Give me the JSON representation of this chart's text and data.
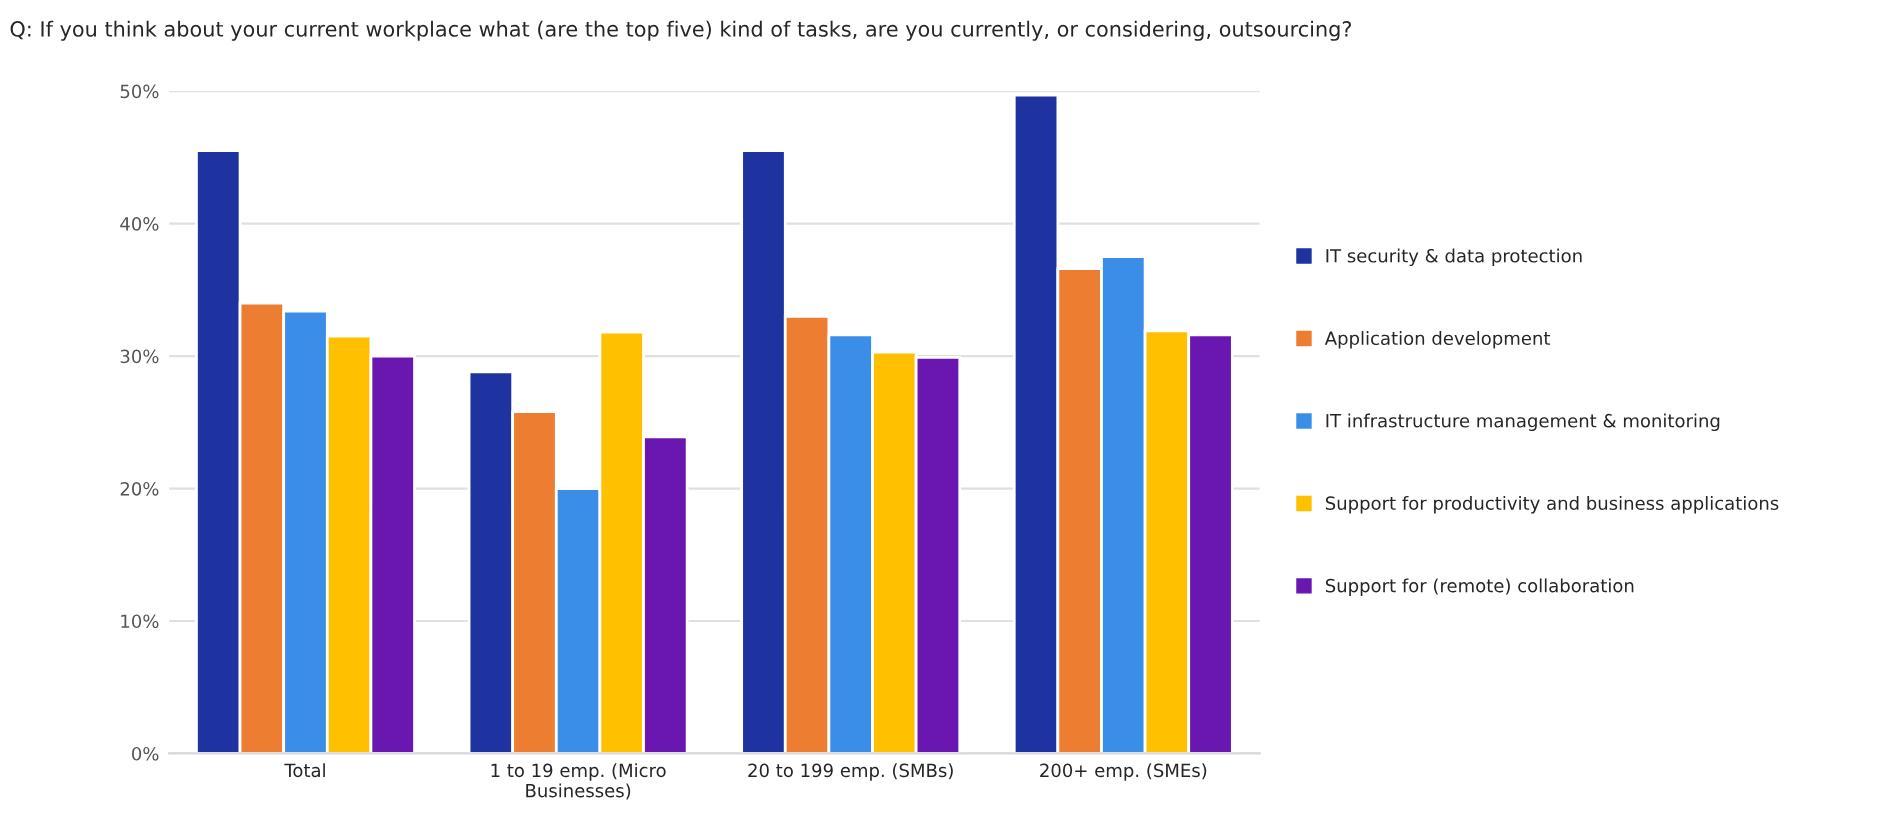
{
  "chart_data": {
    "type": "bar",
    "title": "Q: If you think about your current workplace what (are the top five) kind of tasks, are you currently, or considering, outsourcing?",
    "categories": [
      "Total",
      "1 to 19 emp. (Micro\nBusinesses)",
      "20 to 199 emp. (SMBs)",
      "200+ emp. (SMEs)"
    ],
    "series": [
      {
        "name": "IT security & data protection",
        "color": "#1f33a0",
        "values": [
          45.5,
          28.8,
          45.5,
          49.7
        ]
      },
      {
        "name": "Application development",
        "color": "#ed7d31",
        "values": [
          34.0,
          25.8,
          33.0,
          36.6
        ]
      },
      {
        "name": "IT infrastructure management & monitoring",
        "color": "#3a8ee8",
        "values": [
          33.4,
          20.0,
          31.6,
          37.5
        ]
      },
      {
        "name": "Support for productivity and business applications",
        "color": "#ffc000",
        "values": [
          31.5,
          31.8,
          30.3,
          31.9
        ]
      },
      {
        "name": "Support for (remote) collaboration",
        "color": "#6a16b0",
        "values": [
          30.0,
          23.9,
          29.9,
          31.6
        ]
      }
    ],
    "ylim": [
      0,
      50
    ],
    "yticks": [
      {
        "value": 0,
        "label": "0%"
      },
      {
        "value": 10,
        "label": "10%"
      },
      {
        "value": 20,
        "label": "20%"
      },
      {
        "value": 30,
        "label": "30%"
      },
      {
        "value": 40,
        "label": "40%"
      },
      {
        "value": 50,
        "label": "50%"
      }
    ],
    "grid": "y",
    "legend": "right"
  }
}
